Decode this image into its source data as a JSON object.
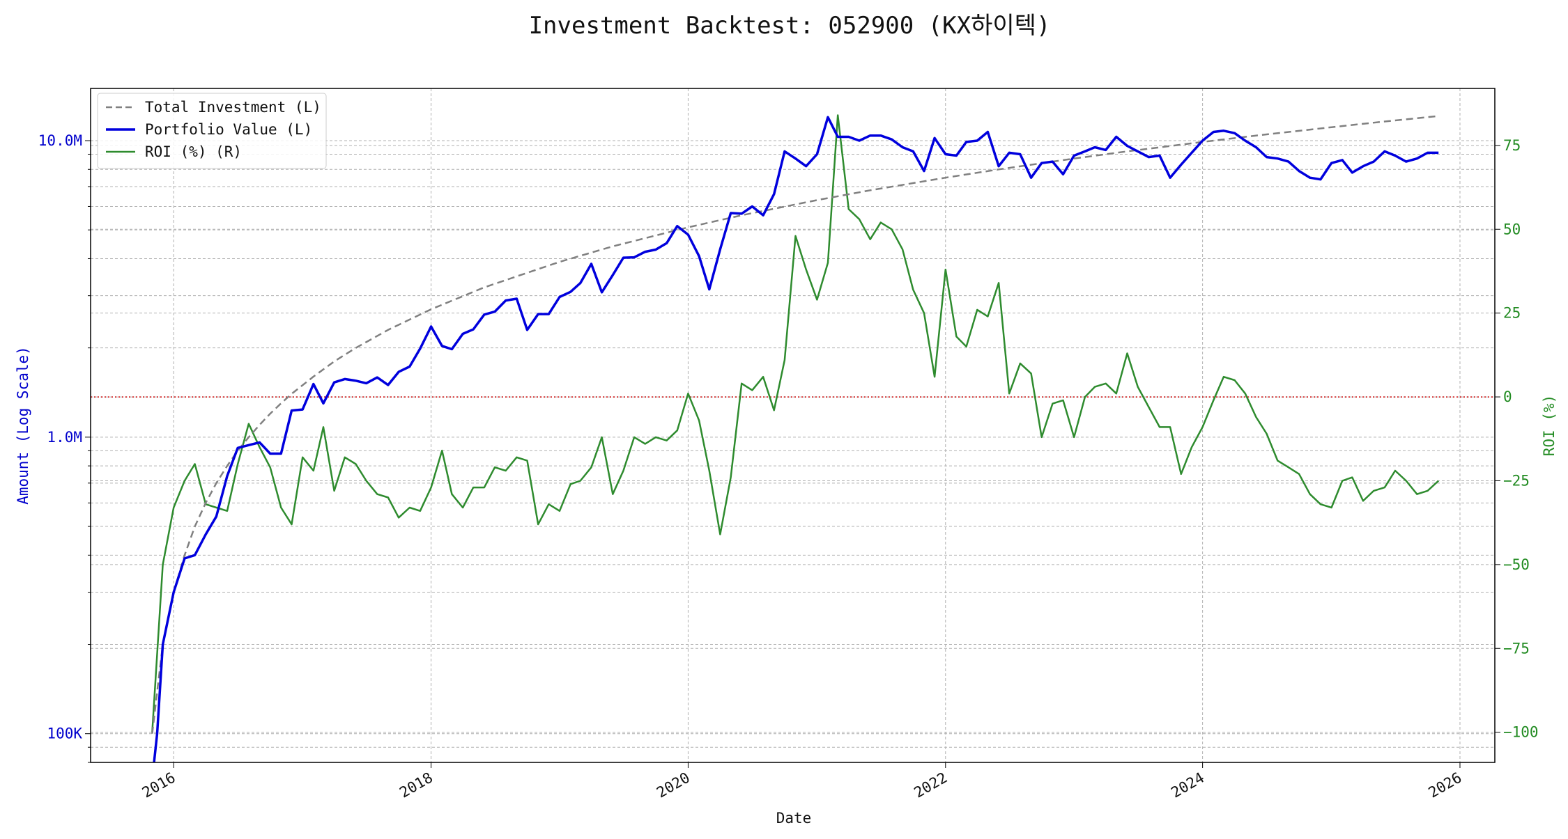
{
  "chart_data": {
    "type": "line",
    "title": "Investment Backtest: 052900 (KX하이텍)",
    "xlabel": "Date",
    "ylabel_left": "Amount (Log Scale)",
    "ylabel_right": "ROI (%)",
    "left_scale": "log",
    "left_ylim": [
      80000,
      15000000
    ],
    "left_ticks": [
      {
        "value": 100000,
        "label": "100K"
      },
      {
        "value": 1000000,
        "label": "1.0M"
      },
      {
        "value": 10000000,
        "label": "10.0M"
      }
    ],
    "right_ylim": [
      -109,
      92
    ],
    "right_ticks": [
      {
        "value": -100,
        "label": "−100"
      },
      {
        "value": -75,
        "label": "−75"
      },
      {
        "value": -50,
        "label": "−50"
      },
      {
        "value": -25,
        "label": "−25"
      },
      {
        "value": 0,
        "label": "0"
      },
      {
        "value": 25,
        "label": "25"
      },
      {
        "value": 50,
        "label": "50"
      },
      {
        "value": 75,
        "label": "75"
      }
    ],
    "xlim": [
      "2015-05-10",
      "2026-04-10"
    ],
    "x_ticks": [
      {
        "value": "2016-01-01",
        "label": "2016"
      },
      {
        "value": "2018-01-01",
        "label": "2018"
      },
      {
        "value": "2020-01-01",
        "label": "2020"
      },
      {
        "value": "2022-01-01",
        "label": "2022"
      },
      {
        "value": "2024-01-01",
        "label": "2024"
      },
      {
        "value": "2026-01-01",
        "label": "2026"
      }
    ],
    "grid": true,
    "legend_position": "top-left",
    "zero_line": {
      "value": 0,
      "axis": "right",
      "color": "#cc0000",
      "style": "dotted"
    },
    "colors": {
      "total": "#808080",
      "portfolio": "#0000dd",
      "roi": "#2e8b2e",
      "left_axis": "#0000cc",
      "right_axis": "#228b22"
    },
    "series": [
      {
        "name": "Total Investment (L)",
        "axis": "left",
        "style": "dashed",
        "color": "#808080",
        "x": [
          "2015-11-01",
          "2015-12-01",
          "2016-01-01",
          "2016-02-01",
          "2016-03-01",
          "2016-04-01",
          "2016-05-01",
          "2016-06-01",
          "2016-07-01",
          "2016-08-01",
          "2016-09-01",
          "2016-10-01",
          "2016-11-01",
          "2016-12-01",
          "2017-02-01",
          "2017-04-01",
          "2017-06-01",
          "2017-09-01",
          "2018-01-01",
          "2018-06-01",
          "2019-01-01",
          "2019-06-01",
          "2020-01-01",
          "2020-06-01",
          "2021-01-01",
          "2021-06-01",
          "2022-01-01",
          "2022-06-01",
          "2023-01-01",
          "2023-06-01",
          "2024-01-01",
          "2024-06-01",
          "2025-01-01",
          "2025-06-01",
          "2025-11-01"
        ],
        "values": [
          100000,
          200000,
          300000,
          400000,
          500000,
          600000,
          700000,
          800000,
          900000,
          1000000,
          1100000,
          1200000,
          1300000,
          1400000,
          1600000,
          1800000,
          2000000,
          2300000,
          2700000,
          3200000,
          3900000,
          4400000,
          5100000,
          5600000,
          6300000,
          6800000,
          7500000,
          8000000,
          8700000,
          9200000,
          9900000,
          10400000,
          11100000,
          11600000,
          12100000
        ]
      },
      {
        "name": "Portfolio Value (L)",
        "axis": "left",
        "style": "solid",
        "color": "#0000dd",
        "x": [
          "2015-11-01",
          "2015-11-15",
          "2015-12-01",
          "2016-01-01",
          "2016-02-01",
          "2016-03-01",
          "2016-04-01",
          "2016-05-01",
          "2016-06-01",
          "2016-07-01",
          "2016-08-01",
          "2016-09-01",
          "2016-10-01",
          "2016-11-01",
          "2016-12-01",
          "2017-01-01",
          "2017-02-01",
          "2017-03-01",
          "2017-04-01",
          "2017-05-01",
          "2017-06-01",
          "2017-07-01",
          "2017-08-01",
          "2017-09-01",
          "2017-10-01",
          "2017-11-01",
          "2017-12-01",
          "2018-01-01",
          "2018-02-01",
          "2018-03-01",
          "2018-04-01",
          "2018-05-01",
          "2018-06-01",
          "2018-07-01",
          "2018-08-01",
          "2018-09-01",
          "2018-10-01",
          "2018-11-01",
          "2018-12-01",
          "2019-01-01",
          "2019-02-01",
          "2019-03-01",
          "2019-04-01",
          "2019-05-01",
          "2019-06-01",
          "2019-07-01",
          "2019-08-01",
          "2019-09-01",
          "2019-10-01",
          "2019-11-01",
          "2019-12-01",
          "2020-01-01",
          "2020-02-01",
          "2020-03-01",
          "2020-04-01",
          "2020-05-01",
          "2020-06-01",
          "2020-07-01",
          "2020-08-01",
          "2020-09-01",
          "2020-10-01",
          "2020-11-01",
          "2020-12-01",
          "2021-01-01",
          "2021-02-01",
          "2021-03-01",
          "2021-04-01",
          "2021-05-01",
          "2021-06-01",
          "2021-07-01",
          "2021-08-01",
          "2021-09-01",
          "2021-10-01",
          "2021-11-01",
          "2021-12-01",
          "2022-01-01",
          "2022-02-01",
          "2022-03-01",
          "2022-04-01",
          "2022-05-01",
          "2022-06-01",
          "2022-07-01",
          "2022-08-01",
          "2022-09-01",
          "2022-10-01",
          "2022-11-01",
          "2022-12-01",
          "2023-01-01",
          "2023-02-01",
          "2023-03-01",
          "2023-04-01",
          "2023-05-01",
          "2023-06-01",
          "2023-07-01",
          "2023-08-01",
          "2023-09-01",
          "2023-10-01",
          "2023-11-01",
          "2023-12-01",
          "2024-01-01",
          "2024-02-01",
          "2024-03-01",
          "2024-04-01",
          "2024-05-01",
          "2024-06-01",
          "2024-07-01",
          "2024-08-01",
          "2024-09-01",
          "2024-10-01",
          "2024-11-01",
          "2024-12-01",
          "2025-01-01",
          "2025-02-01",
          "2025-03-01",
          "2025-04-01",
          "2025-05-01",
          "2025-06-01",
          "2025-07-01",
          "2025-08-01",
          "2025-09-01",
          "2025-10-01",
          "2025-11-01"
        ],
        "values": [
          70000,
          100000,
          200000,
          300000,
          390000,
          400000,
          470000,
          540000,
          740000,
          920000,
          940000,
          960000,
          880000,
          880000,
          1230000,
          1240000,
          1510000,
          1300000,
          1530000,
          1570000,
          1550000,
          1520000,
          1590000,
          1500000,
          1660000,
          1730000,
          1990000,
          2360000,
          2030000,
          1980000,
          2230000,
          2310000,
          2590000,
          2650000,
          2890000,
          2930000,
          2300000,
          2600000,
          2600000,
          2970000,
          3090000,
          3310000,
          3840000,
          3080000,
          3520000,
          4030000,
          4040000,
          4220000,
          4290000,
          4510000,
          5150000,
          4820000,
          4080000,
          3150000,
          4300000,
          5700000,
          5670000,
          6000000,
          5600000,
          6600000,
          9200000,
          8700000,
          8200000,
          9000000,
          12000000,
          10300000,
          10300000,
          10000000,
          10400000,
          10400000,
          10100000,
          9500000,
          9200000,
          7900000,
          10200000,
          9000000,
          8900000,
          9900000,
          10000000,
          10700000,
          8200000,
          9100000,
          9000000,
          7500000,
          8400000,
          8500000,
          7700000,
          8900000,
          9200000,
          9500000,
          9300000,
          10300000,
          9600000,
          9200000,
          8800000,
          8900000,
          7500000,
          8300000,
          9100000,
          10000000,
          10700000,
          10800000,
          10600000,
          10000000,
          9500000,
          8800000,
          8700000,
          8500000,
          7900000,
          7500000,
          7400000,
          8400000,
          8600000,
          7800000,
          8200000,
          8500000,
          9200000,
          8900000,
          8500000,
          8700000,
          9100000,
          9100000
        ]
      },
      {
        "name": "ROI (%) (R)",
        "axis": "right",
        "style": "solid",
        "color": "#2e8b2e",
        "x": [
          "2015-11-01",
          "2015-12-01",
          "2016-01-01",
          "2016-02-01",
          "2016-03-01",
          "2016-04-01",
          "2016-05-01",
          "2016-06-01",
          "2016-07-01",
          "2016-08-01",
          "2016-09-01",
          "2016-10-01",
          "2016-11-01",
          "2016-12-01",
          "2017-01-01",
          "2017-02-01",
          "2017-03-01",
          "2017-04-01",
          "2017-05-01",
          "2017-06-01",
          "2017-07-01",
          "2017-08-01",
          "2017-09-01",
          "2017-10-01",
          "2017-11-01",
          "2017-12-01",
          "2018-01-01",
          "2018-02-01",
          "2018-03-01",
          "2018-04-01",
          "2018-05-01",
          "2018-06-01",
          "2018-07-01",
          "2018-08-01",
          "2018-09-01",
          "2018-10-01",
          "2018-11-01",
          "2018-12-01",
          "2019-01-01",
          "2019-02-01",
          "2019-03-01",
          "2019-04-01",
          "2019-05-01",
          "2019-06-01",
          "2019-07-01",
          "2019-08-01",
          "2019-09-01",
          "2019-10-01",
          "2019-11-01",
          "2019-12-01",
          "2020-01-01",
          "2020-02-01",
          "2020-03-01",
          "2020-04-01",
          "2020-05-01",
          "2020-06-01",
          "2020-07-01",
          "2020-08-01",
          "2020-09-01",
          "2020-10-01",
          "2020-11-01",
          "2020-12-01",
          "2021-01-01",
          "2021-02-01",
          "2021-03-01",
          "2021-04-01",
          "2021-05-01",
          "2021-06-01",
          "2021-07-01",
          "2021-08-01",
          "2021-09-01",
          "2021-10-01",
          "2021-11-01",
          "2021-12-01",
          "2022-01-01",
          "2022-02-01",
          "2022-03-01",
          "2022-04-01",
          "2022-05-01",
          "2022-06-01",
          "2022-07-01",
          "2022-08-01",
          "2022-09-01",
          "2022-10-01",
          "2022-11-01",
          "2022-12-01",
          "2023-01-01",
          "2023-02-01",
          "2023-03-01",
          "2023-04-01",
          "2023-05-01",
          "2023-06-01",
          "2023-07-01",
          "2023-08-01",
          "2023-09-01",
          "2023-10-01",
          "2023-11-01",
          "2023-12-01",
          "2024-01-01",
          "2024-02-01",
          "2024-03-01",
          "2024-04-01",
          "2024-05-01",
          "2024-06-01",
          "2024-07-01",
          "2024-08-01",
          "2024-09-01",
          "2024-10-01",
          "2024-11-01",
          "2024-12-01",
          "2025-01-01",
          "2025-02-01",
          "2025-03-01",
          "2025-04-01",
          "2025-05-01",
          "2025-06-01",
          "2025-07-01",
          "2025-08-01",
          "2025-09-01",
          "2025-10-01",
          "2025-11-01"
        ],
        "values": [
          -100,
          -50,
          -33,
          -25,
          -20,
          -32,
          -33,
          -34,
          -20,
          -8,
          -15,
          -21,
          -33,
          -38,
          -18,
          -22,
          -9,
          -28,
          -18,
          -20,
          -25,
          -29,
          -30,
          -36,
          -33,
          -34,
          -27,
          -16,
          -29,
          -33,
          -27,
          -27,
          -21,
          -22,
          -18,
          -19,
          -38,
          -32,
          -34,
          -26,
          -25,
          -21,
          -12,
          -29,
          -22,
          -12,
          -14,
          -12,
          -13,
          -10,
          1,
          -7,
          -22,
          -41,
          -24,
          4,
          2,
          6,
          -4,
          11,
          48,
          38,
          29,
          40,
          84,
          56,
          53,
          47,
          52,
          50,
          44,
          32,
          25,
          6,
          38,
          18,
          15,
          26,
          24,
          34,
          1,
          10,
          7,
          -12,
          -2,
          -1,
          -12,
          0,
          3,
          4,
          1,
          13,
          3,
          -3,
          -9,
          -9,
          -23,
          -15,
          -9,
          -1,
          6,
          5,
          1,
          -6,
          -11,
          -19,
          -21,
          -23,
          -29,
          -32,
          -33,
          -25,
          -24,
          -31,
          -28,
          -27,
          -22,
          -25,
          -29,
          -28,
          -25
        ]
      }
    ]
  }
}
